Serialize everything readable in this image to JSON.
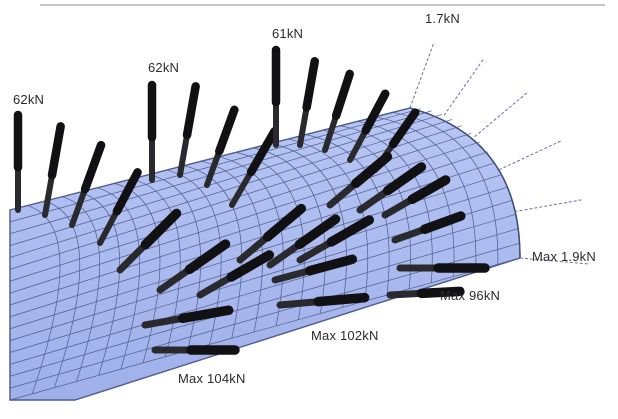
{
  "labels": {
    "axial_1": "62kN",
    "axial_2": "62kN",
    "axial_3": "61kN",
    "axial_4": "1.7kN",
    "radial_1": "Max 1.9kN",
    "radial_2": "Max 96kN",
    "radial_3": "Max 102kN",
    "radial_4": "Max 104kN"
  },
  "colors": {
    "tunnel_fill": "#a9b9ee",
    "tunnel_mesh": "#4f5c8c",
    "bolt_fill": "#2a2a2e",
    "weak_bolt_line": "#6a6fa8",
    "top_rule": "#c4c4c4"
  }
}
